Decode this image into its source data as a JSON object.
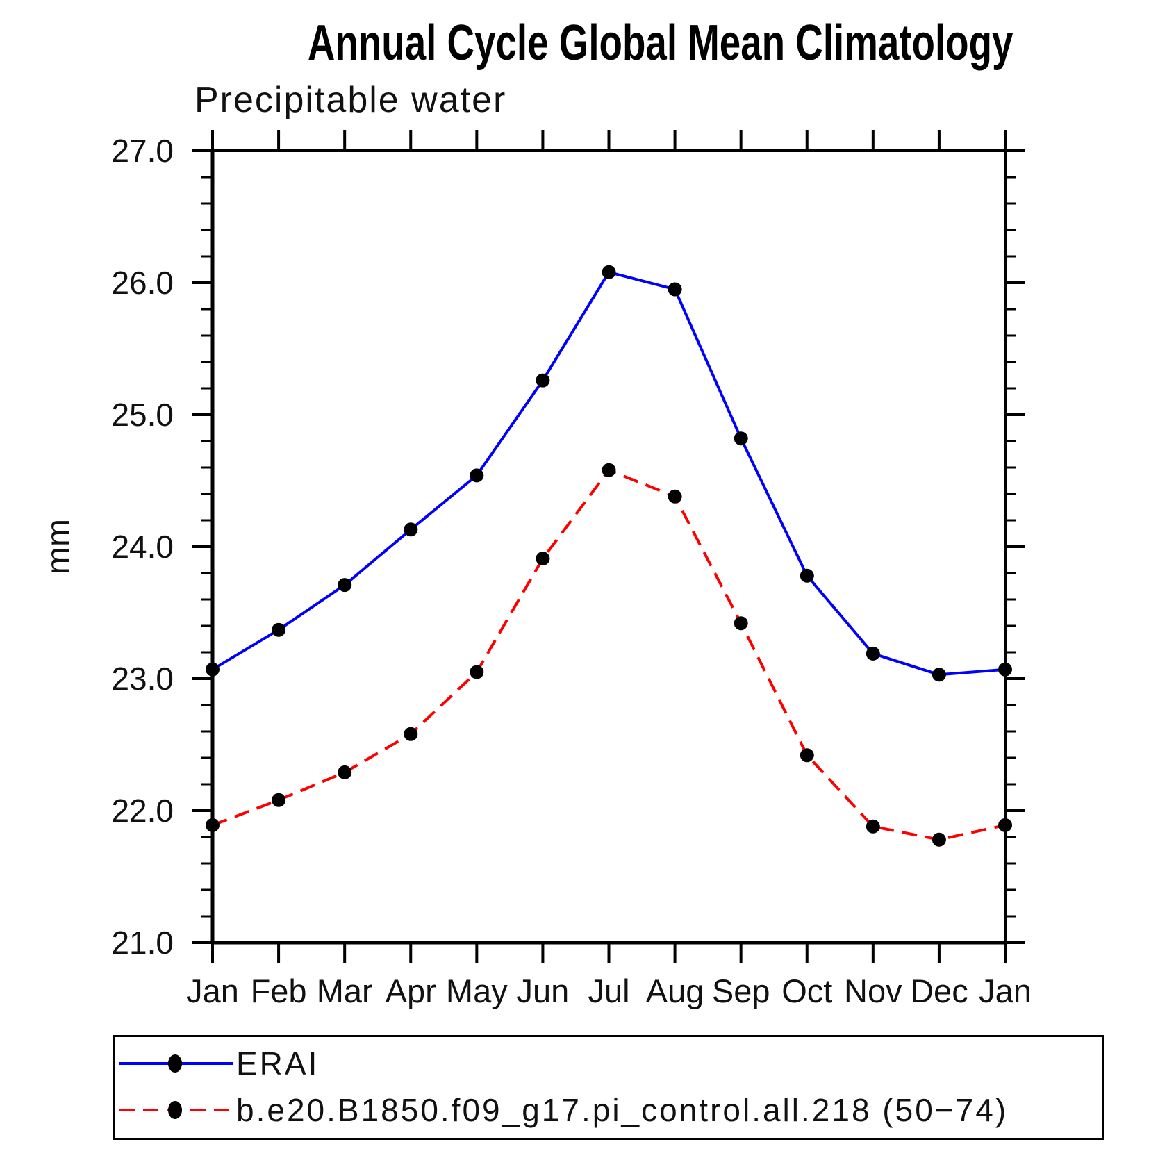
{
  "chart_data": {
    "type": "line",
    "title": "Annual Cycle Global Mean Climatology",
    "subtitle": "Precipitable water",
    "ylabel": "mm",
    "x_categories": [
      "Jan",
      "Feb",
      "Mar",
      "Apr",
      "May",
      "Jun",
      "Jul",
      "Aug",
      "Sep",
      "Oct",
      "Nov",
      "Dec",
      "Jan"
    ],
    "ylim": [
      21.0,
      27.0
    ],
    "ytick_major": [
      21.0,
      22.0,
      23.0,
      24.0,
      25.0,
      26.0,
      27.0
    ],
    "ytick_labels": [
      "21.0",
      "22.0",
      "23.0",
      "24.0",
      "25.0",
      "26.0",
      "27.0"
    ],
    "ytick_minor_step": 0.2,
    "grid": false,
    "legend_position": "bottom-left",
    "axis_color": "#000000",
    "series": [
      {
        "name": "ERAI",
        "line_style": "solid",
        "line_color": "#0000ff",
        "marker": "filled-circle",
        "marker_color": "#000000",
        "values": [
          23.07,
          23.37,
          23.71,
          24.13,
          24.54,
          25.26,
          26.08,
          25.95,
          24.82,
          23.78,
          23.19,
          23.03,
          23.07
        ]
      },
      {
        "name": "b.e20.B1850.f09_g17.pi_control.all.218 (50−74)",
        "line_style": "dashed",
        "line_color": "#ff0000",
        "marker": "filled-circle",
        "marker_color": "#000000",
        "values": [
          21.89,
          22.08,
          22.29,
          22.58,
          23.05,
          23.91,
          24.58,
          24.38,
          23.42,
          22.42,
          21.88,
          21.78,
          21.89
        ]
      }
    ]
  }
}
